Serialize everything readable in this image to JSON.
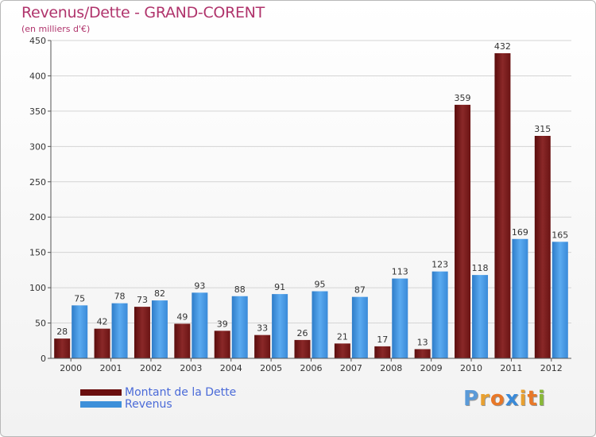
{
  "chart_data": {
    "type": "bar",
    "title": "Revenus/Dette - GRAND-CORENT",
    "subtitle": "(en milliers d'€)",
    "categories": [
      "2000",
      "2001",
      "2002",
      "2003",
      "2004",
      "2005",
      "2006",
      "2007",
      "2008",
      "2009",
      "2010",
      "2011",
      "2012"
    ],
    "series": [
      {
        "name": "Montant de la Dette",
        "color": "#7a1a1a",
        "values": [
          28,
          42,
          73,
          49,
          39,
          33,
          26,
          21,
          17,
          13,
          359,
          432,
          315
        ]
      },
      {
        "name": "Revenus",
        "color": "#3d8fd9",
        "values": [
          75,
          78,
          82,
          93,
          88,
          91,
          95,
          87,
          113,
          123,
          118,
          169,
          165
        ]
      }
    ],
    "ylim": [
      0,
      450
    ],
    "yticks": [
      0,
      50,
      100,
      150,
      200,
      250,
      300,
      350,
      400,
      450
    ],
    "grid": true,
    "legend": "bottom-left"
  },
  "branding": {
    "logo_letters": [
      "P",
      "r",
      "o",
      "x",
      "i",
      "t",
      "i"
    ],
    "logo_colors": [
      "#5a9ad8",
      "#e8a030",
      "#e87828",
      "#3a8ad8",
      "#e8a030",
      "#e87828",
      "#88b838"
    ]
  }
}
